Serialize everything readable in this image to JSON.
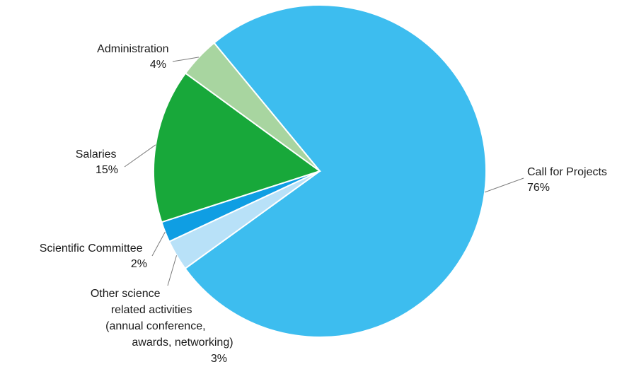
{
  "chart_data": {
    "type": "pie",
    "slices": [
      {
        "label": "Call for Projects",
        "value": 76,
        "pct_text": "76%",
        "color": "#3dbdef"
      },
      {
        "label": "Other science related activities (annual conference, awards, networking)",
        "value": 3,
        "pct_text": "3%",
        "color": "#b8e1f8"
      },
      {
        "label": "Scientific Committee",
        "value": 2,
        "pct_text": "2%",
        "color": "#0f9ee3"
      },
      {
        "label": "Salaries",
        "value": 15,
        "pct_text": "15%",
        "color": "#18a83a"
      },
      {
        "label": "Administration",
        "value": 4,
        "pct_text": "4%",
        "color": "#a8d5a0"
      }
    ],
    "label_lines": {
      "call": [
        "Call for Projects",
        "76%"
      ],
      "other": [
        "Other science",
        "related activities",
        "(annual conference,",
        "awards, networking)",
        "3%"
      ],
      "scientific": [
        "Scientific Committee",
        "2%"
      ],
      "salaries": [
        "Salaries",
        "15%"
      ],
      "administration": [
        "Administration",
        "4%"
      ]
    }
  }
}
